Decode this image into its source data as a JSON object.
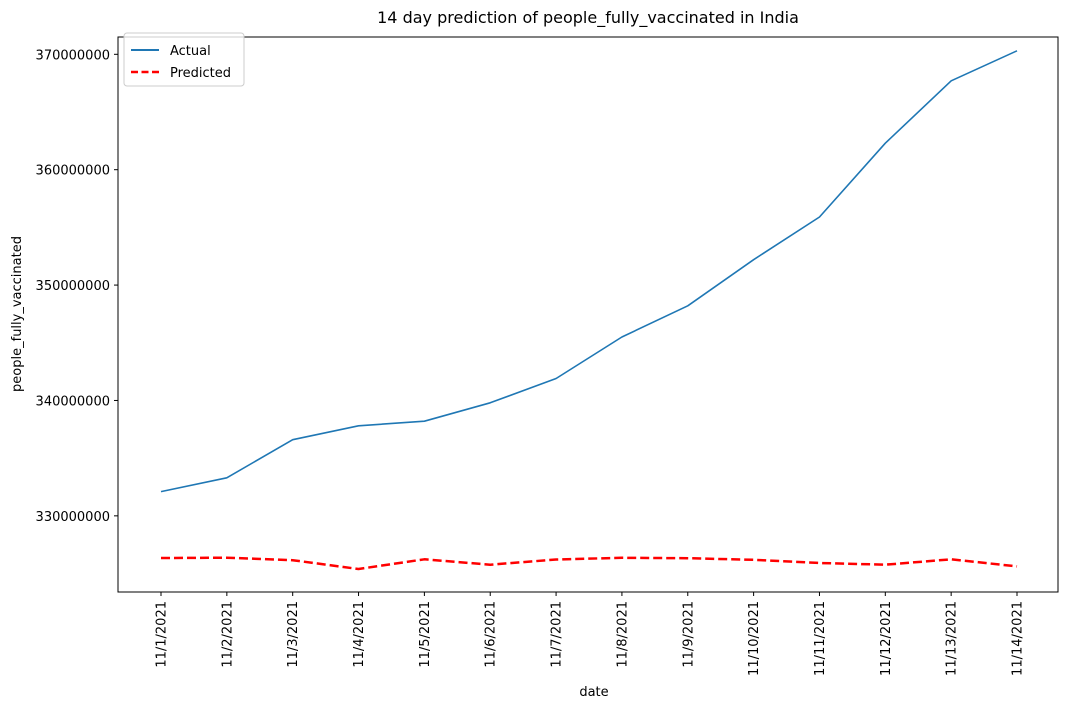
{
  "chart_data": {
    "type": "line",
    "title": "14 day prediction of people_fully_vaccinated in India",
    "xlabel": "date",
    "ylabel": "people_fully_vaccinated",
    "categories": [
      "11/1/2021",
      "11/2/2021",
      "11/3/2021",
      "11/4/2021",
      "11/5/2021",
      "11/6/2021",
      "11/7/2021",
      "11/8/2021",
      "11/9/2021",
      "11/10/2021",
      "11/11/2021",
      "11/12/2021",
      "11/13/2021",
      "11/14/2021"
    ],
    "yticks": [
      330000000,
      340000000,
      350000000,
      360000000,
      370000000
    ],
    "ylim": [
      323400000,
      371500000
    ],
    "grid": false,
    "legend_position": "top-left",
    "series": [
      {
        "name": "Actual",
        "color": "#1f77b4",
        "style": "solid",
        "values": [
          332100000,
          333300000,
          336600000,
          337800000,
          338200000,
          339800000,
          341900000,
          345500000,
          348200000,
          352200000,
          355900000,
          362300000,
          367700000,
          370300000
        ]
      },
      {
        "name": "Predicted",
        "color": "#ff0000",
        "style": "dashed",
        "values": [
          326350000,
          326370000,
          326160000,
          325390000,
          326230000,
          325770000,
          326220000,
          326360000,
          326330000,
          326190000,
          325910000,
          325770000,
          326230000,
          325620000
        ]
      }
    ]
  }
}
